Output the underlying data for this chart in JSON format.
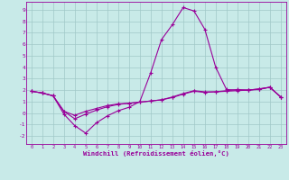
{
  "xlabel": "Windchill (Refroidissement éolien,°C)",
  "bg_color": "#c8eae8",
  "line_color": "#990099",
  "grid_color": "#a0c8c8",
  "x_ticks": [
    0,
    1,
    2,
    3,
    4,
    5,
    6,
    7,
    8,
    9,
    10,
    11,
    12,
    13,
    14,
    15,
    16,
    17,
    18,
    19,
    20,
    21,
    22,
    23
  ],
  "y_ticks": [
    -2,
    -1,
    0,
    1,
    2,
    3,
    4,
    5,
    6,
    7,
    8,
    9
  ],
  "xlim": [
    -0.5,
    23.5
  ],
  "ylim": [
    -2.7,
    9.7
  ],
  "line1_x": [
    0,
    1,
    2,
    3,
    4,
    5,
    6,
    7,
    8,
    9,
    10,
    11,
    12,
    13,
    14,
    15,
    16,
    17,
    18,
    19,
    20,
    21,
    22,
    23
  ],
  "line1_y": [
    1.9,
    1.75,
    1.5,
    0.15,
    -0.2,
    0.15,
    0.4,
    0.65,
    0.8,
    0.85,
    0.95,
    1.05,
    1.15,
    1.4,
    1.7,
    1.95,
    1.85,
    1.85,
    1.95,
    2.05,
    2.0,
    2.1,
    2.25,
    1.4
  ],
  "line2_x": [
    0,
    1,
    2,
    3,
    4,
    5,
    6,
    7,
    8,
    9,
    10,
    11,
    12,
    13,
    14,
    15,
    16,
    17,
    18,
    19,
    20,
    21,
    22,
    23
  ],
  "line2_y": [
    1.9,
    1.75,
    1.5,
    -0.1,
    -1.1,
    -1.75,
    -0.85,
    -0.25,
    0.2,
    0.5,
    1.0,
    3.5,
    6.4,
    7.7,
    9.2,
    8.9,
    7.3,
    4.0,
    2.05,
    2.0,
    2.0,
    2.1,
    2.25,
    1.4
  ],
  "line3_x": [
    0,
    1,
    2,
    3,
    4,
    5,
    6,
    7,
    8,
    9,
    10,
    11,
    12,
    13,
    14,
    15,
    16,
    17,
    18,
    19,
    20,
    21,
    22,
    23
  ],
  "line3_y": [
    1.9,
    1.75,
    1.5,
    0.15,
    -0.5,
    -0.1,
    0.25,
    0.55,
    0.75,
    0.85,
    0.95,
    1.05,
    1.15,
    1.35,
    1.65,
    1.9,
    1.8,
    1.85,
    1.9,
    1.95,
    2.0,
    2.05,
    2.25,
    1.4
  ]
}
